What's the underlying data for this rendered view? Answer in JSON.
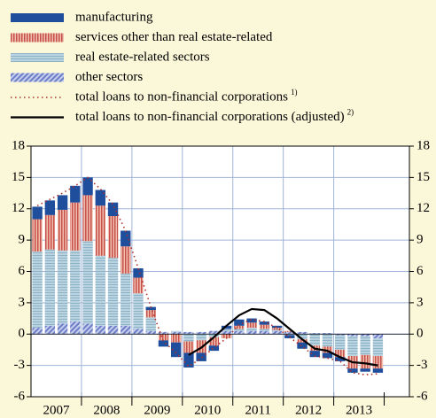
{
  "chart_data": {
    "type": "bar",
    "stacked": true,
    "years": [
      "2007",
      "2008",
      "2009",
      "2010",
      "2011",
      "2012",
      "2013"
    ],
    "ylim": [
      -6,
      18
    ],
    "yticks": [
      -6,
      -3,
      0,
      3,
      6,
      9,
      12,
      15,
      18
    ],
    "grid": true,
    "series": [
      {
        "name": "manufacturing",
        "color": "#1f4e9c",
        "kind": "bar",
        "values": [
          1.2,
          1.4,
          1.4,
          1.6,
          1.7,
          1.5,
          1.3,
          1.5,
          0.9,
          0.3,
          -0.6,
          -1.4,
          -1.4,
          -0.8,
          -0.5,
          0.3,
          0.6,
          0.4,
          0.3,
          0.2,
          -0.3,
          -0.6,
          -0.6,
          -0.5,
          -0.4,
          -0.4,
          -0.3,
          -0.4
        ]
      },
      {
        "name": "services other than real estate-related",
        "color": "#c8504a",
        "kind": "bar",
        "values": [
          3.1,
          3.3,
          3.9,
          4.6,
          4.4,
          4.8,
          4.0,
          2.6,
          1.5,
          0.7,
          -0.6,
          -0.8,
          -1.1,
          -1.2,
          -0.8,
          -0.4,
          0.3,
          0.5,
          0.4,
          0.2,
          0.1,
          -0.3,
          -0.5,
          -0.6,
          -0.7,
          -1.2,
          -1.3,
          -1.2
        ]
      },
      {
        "name": "real estate-related sectors",
        "color": "#a9c8d8",
        "kind": "bar",
        "values": [
          7.3,
          7.3,
          7.0,
          6.8,
          7.9,
          6.7,
          6.5,
          5.0,
          3.4,
          1.3,
          0.0,
          0.1,
          -0.7,
          -0.6,
          -0.3,
          0.2,
          0.2,
          0.3,
          0.2,
          0.1,
          -0.1,
          -0.5,
          -1.1,
          -1.2,
          -1.4,
          -1.9,
          -1.8,
          -1.7
        ]
      },
      {
        "name": "other sectors",
        "color": "#7b8ccc",
        "kind": "bar",
        "values": [
          0.6,
          0.8,
          1.0,
          1.2,
          1.0,
          0.8,
          0.8,
          0.8,
          0.5,
          0.3,
          0.2,
          0.2,
          0.2,
          0.2,
          0.3,
          0.3,
          0.3,
          0.3,
          0.3,
          0.3,
          0.2,
          0.2,
          0.1,
          0.1,
          -0.1,
          -0.2,
          -0.2,
          -0.4
        ]
      },
      {
        "name": "total loans to non-financial corporations",
        "note": "1)",
        "color": "#b0302a",
        "kind": "line",
        "style": "dotted",
        "values": [
          12.3,
          12.9,
          13.5,
          14.2,
          15.0,
          13.9,
          12.4,
          9.9,
          6.3,
          2.6,
          -0.7,
          -1.8,
          -3.1,
          -2.3,
          -1.3,
          -0.4,
          0.9,
          1.4,
          1.2,
          0.6,
          -0.3,
          -1.2,
          -2.1,
          -2.3,
          -2.6,
          -3.7,
          -3.9,
          -3.8
        ]
      },
      {
        "name": "total loans to non-financial corporations (adjusted)",
        "note": "2)",
        "color": "#000000",
        "kind": "line",
        "style": "solid",
        "values": [
          null,
          null,
          null,
          null,
          null,
          null,
          null,
          null,
          null,
          null,
          null,
          null,
          -2.0,
          -1.3,
          -0.3,
          0.8,
          1.8,
          2.4,
          2.3,
          1.5,
          0.5,
          -0.5,
          -1.4,
          -1.6,
          -2.2,
          -2.7,
          -2.8,
          -3.0
        ]
      }
    ]
  }
}
